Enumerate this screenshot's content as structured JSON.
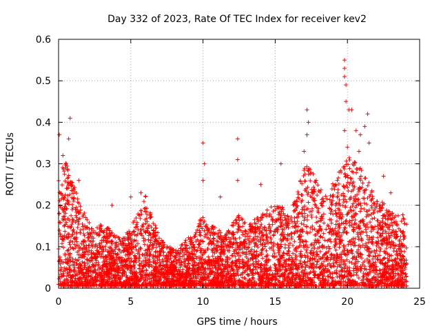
{
  "chart_data": {
    "type": "scatter",
    "title": "Day 332 of 2023, Rate Of TEC Index for receiver kev2",
    "xlabel": "GPS time / hours",
    "ylabel": "ROTI / TECUs",
    "xlim": [
      0,
      25
    ],
    "ylim": [
      0,
      0.6
    ],
    "xticks": [
      0,
      5,
      10,
      15,
      20,
      25
    ],
    "yticks": [
      0,
      0.1,
      0.2,
      0.3,
      0.4,
      0.5,
      0.6
    ],
    "xtick_labels": [
      "0",
      "5",
      "10",
      "15",
      "20",
      "25"
    ],
    "ytick_labels": [
      "0",
      "0.1",
      "0.2",
      "0.3",
      "0.4",
      "0.5",
      "0.6"
    ],
    "grid": true,
    "marker": "+",
    "color": "#ff0000",
    "series": [
      {
        "name": "ROTI",
        "envelope_hours": [
          0,
          0.5,
          1,
          1.5,
          2,
          2.5,
          3,
          3.5,
          4,
          4.5,
          5,
          5.5,
          6,
          6.5,
          7,
          7.5,
          8,
          8.5,
          9,
          9.5,
          10,
          10.5,
          11,
          11.5,
          12,
          12.5,
          13,
          13.5,
          14,
          14.5,
          15,
          15.5,
          16,
          16.5,
          17,
          17.5,
          18,
          18.5,
          19,
          19.5,
          20,
          20.5,
          21,
          21.5,
          22,
          22.5,
          23,
          23.5,
          24
        ],
        "envelope_max": [
          0.28,
          0.3,
          0.25,
          0.2,
          0.16,
          0.14,
          0.15,
          0.14,
          0.12,
          0.12,
          0.14,
          0.18,
          0.22,
          0.17,
          0.12,
          0.1,
          0.09,
          0.1,
          0.12,
          0.13,
          0.18,
          0.15,
          0.14,
          0.12,
          0.15,
          0.18,
          0.15,
          0.16,
          0.17,
          0.19,
          0.2,
          0.19,
          0.18,
          0.22,
          0.3,
          0.28,
          0.25,
          0.22,
          0.25,
          0.28,
          0.32,
          0.3,
          0.29,
          0.25,
          0.22,
          0.2,
          0.18,
          0.17,
          0.18
        ],
        "points": [
          [
            0.05,
            0.37
          ],
          [
            0.3,
            0.32
          ],
          [
            0.5,
            0.29
          ],
          [
            0.7,
            0.36
          ],
          [
            0.8,
            0.41
          ],
          [
            1.4,
            0.26
          ],
          [
            3.7,
            0.2
          ],
          [
            5.0,
            0.22
          ],
          [
            5.7,
            0.23
          ],
          [
            10.0,
            0.35
          ],
          [
            10.1,
            0.3
          ],
          [
            10.0,
            0.26
          ],
          [
            11.2,
            0.22
          ],
          [
            12.4,
            0.36
          ],
          [
            12.4,
            0.31
          ],
          [
            12.4,
            0.26
          ],
          [
            14.0,
            0.25
          ],
          [
            15.4,
            0.3
          ],
          [
            17.2,
            0.43
          ],
          [
            17.3,
            0.4
          ],
          [
            17.2,
            0.37
          ],
          [
            17.0,
            0.33
          ],
          [
            19.8,
            0.55
          ],
          [
            19.8,
            0.53
          ],
          [
            19.8,
            0.51
          ],
          [
            19.9,
            0.49
          ],
          [
            19.9,
            0.45
          ],
          [
            19.8,
            0.38
          ],
          [
            20.1,
            0.43
          ],
          [
            20.3,
            0.43
          ],
          [
            20.6,
            0.38
          ],
          [
            20.9,
            0.37
          ],
          [
            21.2,
            0.39
          ],
          [
            21.4,
            0.42
          ],
          [
            21.5,
            0.35
          ],
          [
            20.0,
            0.34
          ],
          [
            20.8,
            0.33
          ],
          [
            22.5,
            0.27
          ],
          [
            23.0,
            0.23
          ]
        ]
      }
    ]
  }
}
